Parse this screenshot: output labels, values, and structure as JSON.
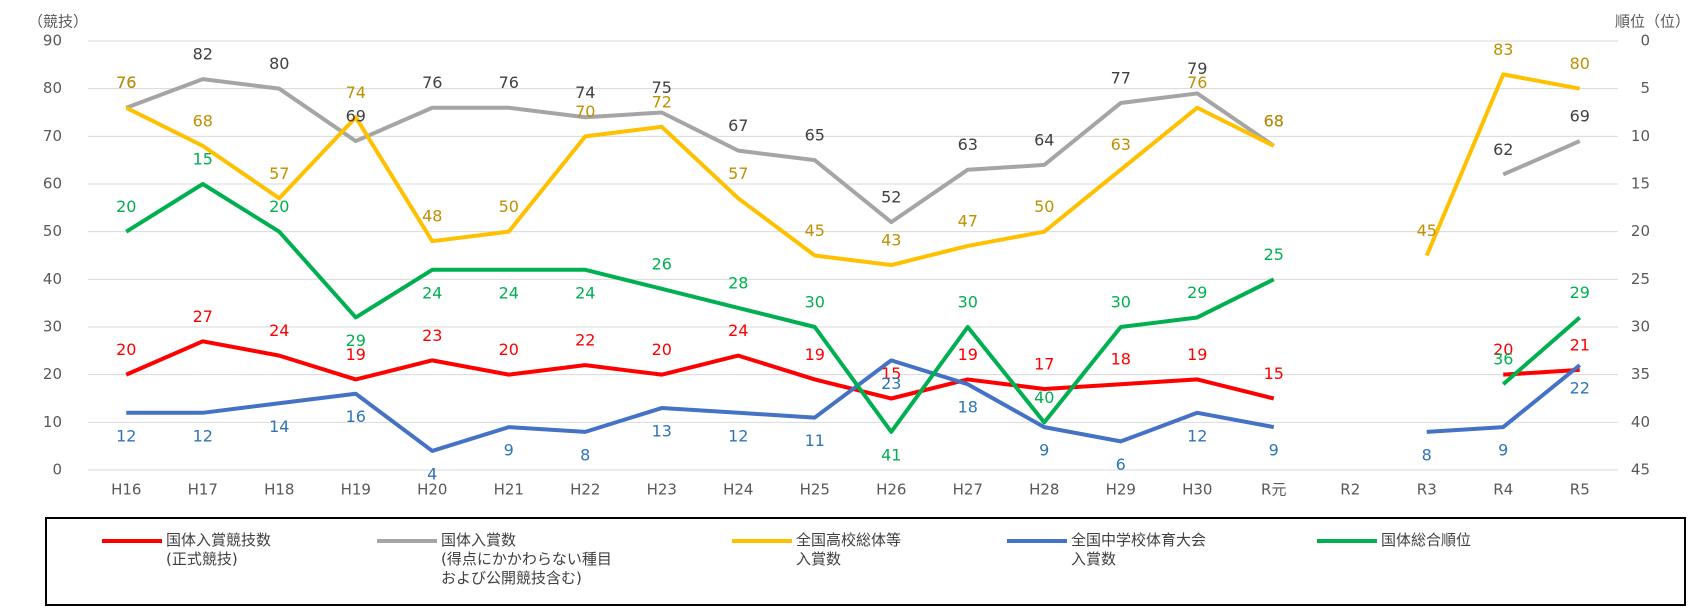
{
  "chart_data": {
    "type": "line",
    "y_label": "（競技）",
    "y2_label": "順位（位）",
    "categories": [
      "H16",
      "H17",
      "H18",
      "H19",
      "H20",
      "H21",
      "H22",
      "H23",
      "H24",
      "H25",
      "H26",
      "H27",
      "H28",
      "H29",
      "H30",
      "R元",
      "R2",
      "R3",
      "R4",
      "R5"
    ],
    "ylim": [
      0,
      90
    ],
    "yticks": [
      0,
      10,
      20,
      30,
      40,
      50,
      60,
      70,
      80,
      90
    ],
    "y2lim": [
      45,
      0
    ],
    "y2ticks": [
      0,
      5,
      10,
      15,
      20,
      25,
      30,
      35,
      40,
      45
    ],
    "grid": true,
    "series": [
      {
        "name": "国体入賞競技数\n(正式競技)",
        "color": "#ff0000",
        "label_color": "#ff0000",
        "values": [
          20,
          27,
          24,
          19,
          23,
          20,
          22,
          20,
          24,
          19,
          15,
          19,
          17,
          18,
          19,
          15,
          null,
          null,
          20,
          21
        ]
      },
      {
        "name": "国体入賞数\n(得点にかかわらない種目\nおよび公開競技含む)",
        "color": "#a5a5a5",
        "label_color": "#404040",
        "values": [
          76,
          82,
          80,
          69,
          76,
          76,
          74,
          75,
          67,
          65,
          52,
          63,
          64,
          77,
          79,
          68,
          null,
          null,
          62,
          69
        ]
      },
      {
        "name": "全国高校総体等\n入賞数",
        "color": "#ffc000",
        "label_color": "#bf9000",
        "values": [
          76,
          68,
          57,
          74,
          48,
          50,
          70,
          72,
          57,
          45,
          43,
          47,
          50,
          63,
          76,
          68,
          null,
          45,
          83,
          80
        ]
      },
      {
        "name": "全国中学校体育大会\n入賞数",
        "color": "#4472c4",
        "label_color": "#2e75b6",
        "values": [
          12,
          12,
          14,
          16,
          4,
          9,
          8,
          13,
          12,
          11,
          23,
          18,
          9,
          6,
          12,
          9,
          null,
          8,
          9,
          22
        ]
      },
      {
        "name": "国体総合順位",
        "color": "#00b050",
        "label_color": "#00b050",
        "axis": "y2",
        "values": [
          20,
          15,
          20,
          29,
          24,
          24,
          24,
          26,
          28,
          30,
          41,
          30,
          40,
          30,
          29,
          25,
          null,
          null,
          36,
          29
        ]
      }
    ]
  }
}
